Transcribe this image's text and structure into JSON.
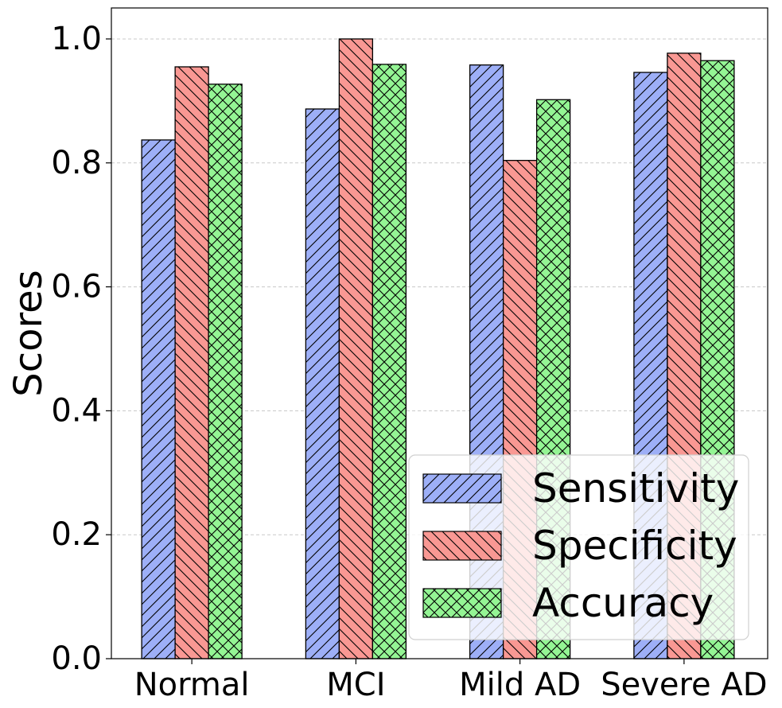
{
  "chart_data": {
    "type": "bar",
    "title": "",
    "xlabel": "",
    "ylabel": "Scores",
    "ylim": [
      0,
      1.05
    ],
    "yticks": [
      0.0,
      0.2,
      0.4,
      0.6,
      0.8,
      1.0
    ],
    "ytick_labels": [
      "0.0",
      "0.2",
      "0.4",
      "0.6",
      "0.8",
      "1.0"
    ],
    "grid": "y, dashed",
    "legend_position": "bottom-right",
    "categories": [
      "Normal",
      "MCI",
      "Mild AD",
      "Severe AD"
    ],
    "series": [
      {
        "name": "Sensitivity",
        "color": "#9daff7",
        "hatch": "diagonal-forward",
        "values": [
          0.837,
          0.887,
          0.958,
          0.946
        ]
      },
      {
        "name": "Specificity",
        "color": "#f99893",
        "hatch": "diagonal-backward",
        "values": [
          0.955,
          1.0,
          0.804,
          0.977
        ]
      },
      {
        "name": "Accuracy",
        "color": "#94f594",
        "hatch": "crosshatch",
        "values": [
          0.927,
          0.959,
          0.902,
          0.965
        ]
      }
    ]
  }
}
